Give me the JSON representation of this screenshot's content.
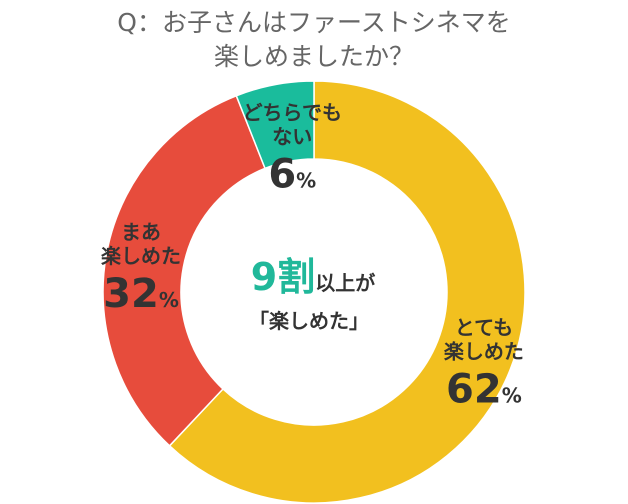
{
  "title_line1": "Q：お子さんはファーストシネマを",
  "title_line2": "楽しめましたか？",
  "center": {
    "big": "9割",
    "small": "以上が",
    "line2": "「楽しめた」"
  },
  "colors": {
    "title": "#666666",
    "center_accent": "#20b89a",
    "label_text": "#333333"
  },
  "chart_data": {
    "type": "pie",
    "donut": true,
    "categories": [
      "とても楽しめた",
      "まあ楽しめた",
      "どちらでもない"
    ],
    "values": [
      62,
      32,
      6
    ],
    "unit": "%",
    "colors": [
      "#f2c01f",
      "#e74c3c",
      "#1abc9c"
    ],
    "label_lines": [
      [
        "とても",
        "楽しめた"
      ],
      [
        "まあ",
        "楽しめた"
      ],
      [
        "どちらでも",
        "ない"
      ]
    ],
    "value_labels": [
      "62",
      "32",
      "6"
    ],
    "start": "12 o'clock",
    "direction": "clockwise"
  }
}
